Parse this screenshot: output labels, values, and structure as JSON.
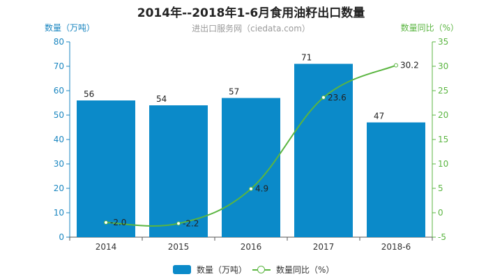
{
  "chart_data": {
    "type": "bar+line",
    "title": "2014年--2018年1-6月食用油籽出口数量",
    "subtitle": "进出口服务网（ciedata.com）",
    "categories": [
      "2014",
      "2015",
      "2016",
      "2017",
      "2018-6"
    ],
    "series": [
      {
        "name": "数量（万吨）",
        "type": "bar",
        "axis": "left",
        "values": [
          56,
          54,
          57,
          71,
          47
        ],
        "color": "#0b8ac9"
      },
      {
        "name": "数量同比（%）",
        "type": "line",
        "axis": "right",
        "values": [
          -2.0,
          -2.2,
          4.9,
          23.6,
          30.2
        ],
        "color": "#5ab540"
      }
    ],
    "y_left": {
      "label": "数量（万吨）",
      "min": 0,
      "max": 80,
      "step": 10,
      "color": "#1a86c0"
    },
    "y_right": {
      "label": "数量同比（%）",
      "min": -5,
      "max": 35,
      "step": 5,
      "color": "#5ab540"
    },
    "legend_position": "bottom-center",
    "grid": false
  }
}
